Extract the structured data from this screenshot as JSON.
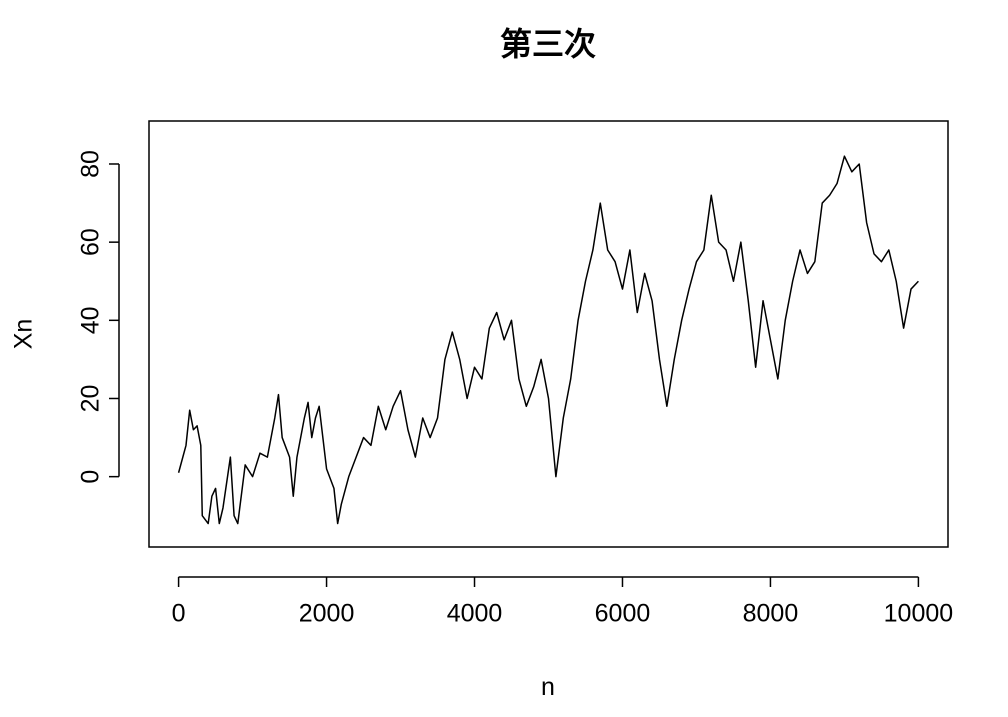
{
  "chart_data": {
    "type": "line",
    "title": "第三次",
    "xlabel": "n",
    "ylabel": "Xn",
    "x": [
      0,
      100,
      150,
      200,
      250,
      300,
      320,
      400,
      450,
      500,
      550,
      600,
      700,
      750,
      800,
      900,
      1000,
      1100,
      1200,
      1300,
      1350,
      1400,
      1500,
      1550,
      1600,
      1700,
      1750,
      1800,
      1850,
      1900,
      1950,
      2000,
      2100,
      2150,
      2200,
      2300,
      2400,
      2500,
      2600,
      2700,
      2800,
      2900,
      3000,
      3100,
      3200,
      3300,
      3400,
      3500,
      3600,
      3700,
      3800,
      3900,
      4000,
      4100,
      4200,
      4300,
      4400,
      4500,
      4600,
      4700,
      4800,
      4900,
      5000,
      5100,
      5200,
      5300,
      5400,
      5500,
      5600,
      5700,
      5800,
      5900,
      6000,
      6100,
      6200,
      6300,
      6400,
      6500,
      6600,
      6700,
      6800,
      6900,
      7000,
      7100,
      7200,
      7300,
      7400,
      7500,
      7600,
      7700,
      7800,
      7900,
      8000,
      8100,
      8200,
      8300,
      8400,
      8500,
      8600,
      8700,
      8800,
      8900,
      9000,
      9100,
      9200,
      9300,
      9400,
      9500,
      9600,
      9700,
      9800,
      9900,
      10000
    ],
    "values": [
      1,
      8,
      17,
      12,
      13,
      8,
      -10,
      -12,
      -5,
      -3,
      -12,
      -8,
      5,
      -10,
      -12,
      3,
      0,
      6,
      5,
      15,
      21,
      10,
      5,
      -5,
      5,
      15,
      19,
      10,
      15,
      18,
      10,
      2,
      -3,
      -12,
      -7,
      0,
      5,
      10,
      8,
      18,
      12,
      18,
      22,
      12,
      5,
      15,
      10,
      15,
      30,
      37,
      30,
      20,
      28,
      25,
      38,
      42,
      35,
      40,
      25,
      18,
      23,
      30,
      20,
      0,
      15,
      25,
      40,
      50,
      58,
      70,
      58,
      55,
      48,
      58,
      42,
      52,
      45,
      30,
      18,
      30,
      40,
      48,
      55,
      58,
      72,
      60,
      58,
      50,
      60,
      45,
      28,
      45,
      35,
      25,
      40,
      50,
      58,
      52,
      55,
      70,
      72,
      75,
      82,
      78,
      80,
      65,
      57,
      55,
      58,
      50,
      38,
      48,
      50
    ],
    "color": "#000000",
    "xlim": [
      -400,
      10400
    ],
    "xticks": [
      0,
      2000,
      4000,
      6000,
      8000,
      10000
    ],
    "ylim": [
      -18,
      91
    ],
    "yticks": [
      0,
      20,
      40,
      60,
      80
    ],
    "grid": false
  }
}
